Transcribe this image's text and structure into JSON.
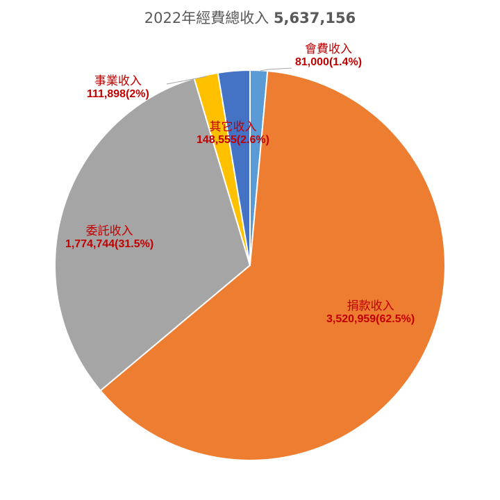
{
  "title": {
    "prefix": "2022年經費總收入",
    "total": "5,637,156"
  },
  "chart_data": {
    "type": "pie",
    "title": "2022年經費總收入 5,637,156",
    "start_angle_deg": 0,
    "direction": "clockwise",
    "slices": [
      {
        "label": "會費收入",
        "value": 81000,
        "display": "81,000(1.4%)",
        "percent": 1.4,
        "color": "#5b9bd5"
      },
      {
        "label": "捐款收入",
        "value": 3520959,
        "display": "3,520,959(62.5%)",
        "percent": 62.5,
        "color": "#ed7d31"
      },
      {
        "label": "委託收入",
        "value": 1774744,
        "display": "1,774,744(31.5%)",
        "percent": 31.5,
        "color": "#a5a5a5"
      },
      {
        "label": "事業收入",
        "value": 111898,
        "display": "111,898(2%)",
        "percent": 2.0,
        "color": "#ffc000"
      },
      {
        "label": "其它收入",
        "value": 148555,
        "display": "148,555(2.6%)",
        "percent": 2.6,
        "color": "#4472c4"
      }
    ],
    "label_color": "#c00000"
  }
}
